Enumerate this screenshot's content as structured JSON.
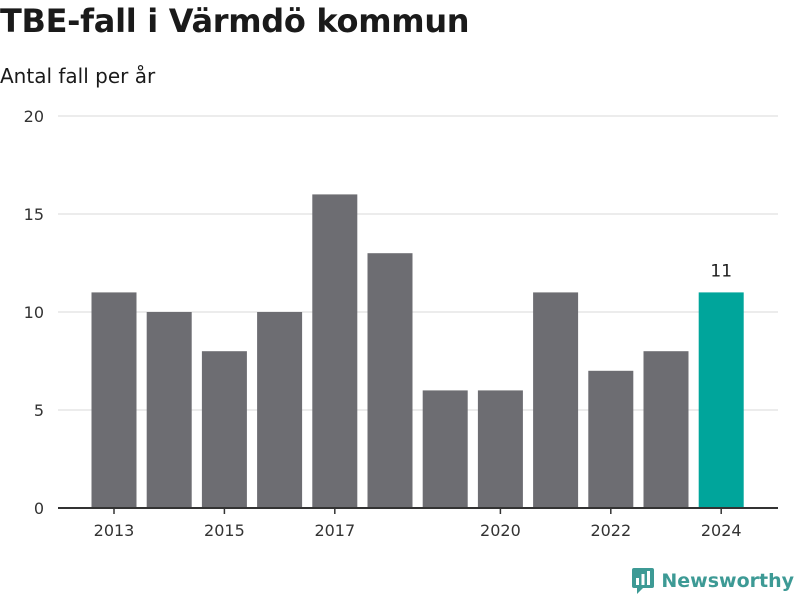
{
  "header": {
    "title": "TBE-fall i Värmdö kommun",
    "subtitle": "Antal fall per år"
  },
  "brand": {
    "name": "Newsworthy"
  },
  "colors": {
    "bar": "#6d6d72",
    "highlight": "#00a59b",
    "grid": "#d9d9d9",
    "axis": "#333333",
    "brand": "#3d9a95"
  },
  "chart_data": {
    "type": "bar",
    "title": "TBE-fall i Värmdö kommun",
    "subtitle": "Antal fall per år",
    "categories": [
      "2013",
      "2014",
      "2015",
      "2016",
      "2017",
      "2018",
      "2019",
      "2020",
      "2021",
      "2022",
      "2023",
      "2024"
    ],
    "values": [
      11,
      10,
      8,
      10,
      16,
      13,
      6,
      6,
      11,
      7,
      8,
      11
    ],
    "x_tick_labels": [
      "2013",
      "2015",
      "2017",
      "2020",
      "2022",
      "2024"
    ],
    "y_ticks": [
      0,
      5,
      10,
      15,
      20
    ],
    "ylim": [
      0,
      20
    ],
    "highlight_index": 11,
    "highlight_label": "11",
    "grid": true,
    "legend": "none",
    "xlabel": "",
    "ylabel": ""
  }
}
